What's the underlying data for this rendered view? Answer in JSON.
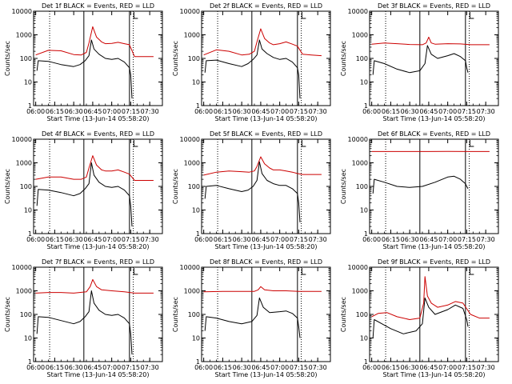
{
  "page": {
    "xtick_labels": [
      "06:00",
      "06:15",
      "06:30",
      "06:45",
      "07:00",
      "07:15",
      "07:30"
    ],
    "ytick_labels": [
      "1",
      "10",
      "100",
      "1000",
      "10000"
    ],
    "colors": {
      "events": "#000000",
      "lld": "#cc0000",
      "marker": "#000000",
      "background": "#ffffff"
    }
  },
  "chart_data": [
    {
      "type": "line",
      "title": "Det 1f BLACK = Events, RED = LLD",
      "xlabel": "Start Time (13-Jun-14 05:58:20)",
      "ylabel": "Counts/sec",
      "xlim": [
        "05:58:20",
        "07:40:00"
      ],
      "ylim": [
        1,
        10000
      ],
      "yscale": "log",
      "solid_markers": [
        "06:38:00",
        "07:14:00"
      ],
      "dotted_markers": [
        "06:11:00",
        "07:17:00"
      ],
      "flag_marker": "07:17:30",
      "series": [
        {
          "color": "#cc0000",
          "x": [
            "06:00",
            "06:10",
            "06:20",
            "06:30",
            "06:36",
            "06:40",
            "06:42",
            "06:45",
            "06:48",
            "06:52",
            "06:55",
            "07:00",
            "07:05",
            "07:10",
            "07:14",
            "07:18",
            "07:25",
            "07:33"
          ],
          "y": [
            140,
            220,
            210,
            145,
            140,
            180,
            450,
            2200,
            800,
            500,
            420,
            430,
            480,
            420,
            380,
            120,
            120,
            120
          ]
        },
        {
          "color": "#000000",
          "x": [
            "06:01",
            "06:02",
            "06:10",
            "06:20",
            "06:30",
            "06:35",
            "06:39",
            "06:42",
            "06:44",
            "06:46",
            "06:50",
            "06:55",
            "07:00",
            "07:05",
            "07:10",
            "07:14",
            "07:15",
            "07:16"
          ],
          "y": [
            30,
            80,
            75,
            55,
            45,
            55,
            80,
            130,
            600,
            250,
            150,
            100,
            90,
            100,
            70,
            40,
            20,
            2
          ]
        }
      ]
    },
    {
      "type": "line",
      "title": "Det 2f BLACK = Events, RED = LLD",
      "xlabel": "Start Time (13-Jun-14 05:58:20)",
      "ylabel": "Counts/sec",
      "xlim": [
        "05:58:20",
        "07:40:00"
      ],
      "ylim": [
        1,
        10000
      ],
      "yscale": "log",
      "solid_markers": [
        "06:38:00",
        "07:14:00"
      ],
      "dotted_markers": [
        "06:11:00",
        "07:17:00"
      ],
      "flag_marker": "07:17:30",
      "series": [
        {
          "color": "#cc0000",
          "x": [
            "06:00",
            "06:10",
            "06:20",
            "06:30",
            "06:36",
            "06:40",
            "06:42",
            "06:45",
            "06:48",
            "06:52",
            "06:55",
            "07:00",
            "07:05",
            "07:10",
            "07:14",
            "07:18",
            "07:25",
            "07:33"
          ],
          "y": [
            140,
            230,
            200,
            140,
            150,
            200,
            500,
            1800,
            700,
            450,
            380,
            420,
            500,
            400,
            330,
            150,
            140,
            130
          ]
        },
        {
          "color": "#000000",
          "x": [
            "06:01",
            "06:02",
            "06:10",
            "06:20",
            "06:30",
            "06:35",
            "06:39",
            "06:42",
            "06:44",
            "06:46",
            "06:50",
            "06:55",
            "07:00",
            "07:05",
            "07:10",
            "07:14",
            "07:15",
            "07:16"
          ],
          "y": [
            25,
            80,
            85,
            60,
            45,
            60,
            90,
            140,
            600,
            250,
            160,
            110,
            90,
            100,
            70,
            40,
            20,
            2
          ]
        }
      ]
    },
    {
      "type": "line",
      "title": "Det 3f BLACK = Events, RED = LLD",
      "xlabel": "Start Time (13-Jun-14 05:58:20)",
      "ylabel": "Counts/sec",
      "xlim": [
        "05:58:20",
        "07:40:00"
      ],
      "ylim": [
        1,
        10000
      ],
      "yscale": "log",
      "solid_markers": [
        "06:38:00",
        "07:14:00"
      ],
      "dotted_markers": [
        "06:11:00",
        "07:17:00"
      ],
      "flag_marker": "07:17:30",
      "series": [
        {
          "color": "#cc0000",
          "x": [
            "06:00",
            "06:10",
            "06:20",
            "06:30",
            "06:40",
            "06:43",
            "06:45",
            "06:47",
            "06:50",
            "07:00",
            "07:10",
            "07:18",
            "07:25",
            "07:33"
          ],
          "y": [
            400,
            450,
            420,
            390,
            380,
            450,
            800,
            450,
            400,
            420,
            410,
            380,
            380,
            380
          ]
        },
        {
          "color": "#000000",
          "x": [
            "06:01",
            "06:02",
            "06:10",
            "06:20",
            "06:30",
            "06:38",
            "06:42",
            "06:44",
            "06:47",
            "06:52",
            "07:00",
            "07:05",
            "07:10",
            "07:14",
            "07:15",
            "07:16"
          ],
          "y": [
            20,
            80,
            60,
            35,
            25,
            30,
            60,
            350,
            150,
            100,
            130,
            160,
            120,
            80,
            40,
            25
          ]
        }
      ]
    },
    {
      "type": "line",
      "title": "Det 4f BLACK = Events, RED = LLD",
      "xlabel": "Start Time (13-Jun-14 05:58:20)",
      "ylabel": "Counts/sec",
      "xlim": [
        "05:58:20",
        "07:40:00"
      ],
      "ylim": [
        1,
        10000
      ],
      "yscale": "log",
      "solid_markers": [
        "06:38:00",
        "07:14:00"
      ],
      "dotted_markers": [
        "06:11:00",
        "07:17:00"
      ],
      "flag_marker": "07:17:30",
      "series": [
        {
          "color": "#cc0000",
          "x": [
            "06:00",
            "06:10",
            "06:20",
            "06:30",
            "06:36",
            "06:40",
            "06:42",
            "06:45",
            "06:48",
            "06:52",
            "06:55",
            "07:00",
            "07:05",
            "07:10",
            "07:14",
            "07:18",
            "07:25",
            "07:33"
          ],
          "y": [
            200,
            250,
            250,
            200,
            200,
            250,
            600,
            2000,
            800,
            500,
            450,
            450,
            500,
            400,
            330,
            180,
            180,
            180
          ]
        },
        {
          "color": "#000000",
          "x": [
            "06:01",
            "06:02",
            "06:10",
            "06:20",
            "06:30",
            "06:35",
            "06:39",
            "06:42",
            "06:44",
            "06:46",
            "06:50",
            "06:55",
            "07:00",
            "07:05",
            "07:10",
            "07:14",
            "07:15",
            "07:16"
          ],
          "y": [
            15,
            75,
            70,
            55,
            40,
            50,
            80,
            130,
            1000,
            300,
            150,
            100,
            90,
            100,
            70,
            40,
            15,
            2
          ]
        }
      ]
    },
    {
      "type": "line",
      "title": "Det 5f BLACK = Events, RED = LLD",
      "xlabel": "Start Time (13-Jun-14 05:58:20)",
      "ylabel": "Counts/sec",
      "xlim": [
        "05:58:20",
        "07:40:00"
      ],
      "ylim": [
        1,
        10000
      ],
      "yscale": "log",
      "solid_markers": [
        "06:38:00",
        "07:14:00"
      ],
      "dotted_markers": [
        "06:11:00",
        "07:17:00"
      ],
      "flag_marker": "07:17:30",
      "series": [
        {
          "color": "#cc0000",
          "x": [
            "06:00",
            "06:10",
            "06:20",
            "06:30",
            "06:36",
            "06:40",
            "06:42",
            "06:45",
            "06:48",
            "06:52",
            "06:55",
            "07:00",
            "07:05",
            "07:10",
            "07:14",
            "07:18",
            "07:25",
            "07:33"
          ],
          "y": [
            300,
            400,
            450,
            420,
            400,
            450,
            700,
            1800,
            900,
            600,
            500,
            500,
            450,
            400,
            350,
            320,
            320,
            320
          ]
        },
        {
          "color": "#000000",
          "x": [
            "06:01",
            "06:02",
            "06:10",
            "06:20",
            "06:30",
            "06:35",
            "06:39",
            "06:42",
            "06:44",
            "06:46",
            "06:50",
            "06:55",
            "07:00",
            "07:05",
            "07:10",
            "07:14",
            "07:15",
            "07:16"
          ],
          "y": [
            30,
            100,
            110,
            80,
            60,
            70,
            100,
            180,
            1100,
            350,
            180,
            130,
            110,
            110,
            80,
            50,
            20,
            3
          ]
        }
      ]
    },
    {
      "type": "line",
      "title": "Det 6f BLACK = Events, RED = LLD",
      "xlabel": "Start Time (13-Jun-14 05:58:20)",
      "ylabel": "Counts/sec",
      "xlim": [
        "05:58:20",
        "07:40:00"
      ],
      "ylim": [
        1,
        10000
      ],
      "yscale": "log",
      "solid_markers": [
        "06:38:00",
        "07:14:00"
      ],
      "dotted_markers": [
        "06:11:00",
        "07:17:00"
      ],
      "flag_marker": "07:17:30",
      "series": [
        {
          "color": "#cc0000",
          "x": [
            "06:00",
            "06:15",
            "06:30",
            "06:45",
            "07:00",
            "07:15",
            "07:33"
          ],
          "y": [
            3000,
            3000,
            3000,
            3000,
            3050,
            3000,
            3000
          ]
        },
        {
          "color": "#000000",
          "x": [
            "06:01",
            "06:02",
            "06:10",
            "06:20",
            "06:30",
            "06:40",
            "06:50",
            "07:00",
            "07:05",
            "07:10",
            "07:14",
            "07:15",
            "07:16"
          ],
          "y": [
            50,
            200,
            150,
            100,
            90,
            100,
            150,
            250,
            270,
            200,
            130,
            100,
            80
          ]
        }
      ]
    },
    {
      "type": "line",
      "title": "Det 7f BLACK = Events, RED = LLD",
      "xlabel": "Start Time (13-Jun-14 05:58:20)",
      "ylabel": "Counts/sec",
      "xlim": [
        "05:58:20",
        "07:40:00"
      ],
      "ylim": [
        1,
        10000
      ],
      "yscale": "log",
      "solid_markers": [
        "06:38:00",
        "07:14:00"
      ],
      "dotted_markers": [
        "06:11:00",
        "07:17:00"
      ],
      "flag_marker": "07:17:30",
      "series": [
        {
          "color": "#cc0000",
          "x": [
            "06:00",
            "06:10",
            "06:20",
            "06:30",
            "06:40",
            "06:43",
            "06:45",
            "06:48",
            "06:52",
            "07:00",
            "07:10",
            "07:18",
            "07:25",
            "07:33"
          ],
          "y": [
            800,
            850,
            850,
            800,
            900,
            1500,
            3000,
            1500,
            1100,
            1000,
            900,
            800,
            800,
            800
          ]
        },
        {
          "color": "#000000",
          "x": [
            "06:01",
            "06:02",
            "06:10",
            "06:20",
            "06:30",
            "06:35",
            "06:39",
            "06:42",
            "06:44",
            "06:46",
            "06:50",
            "06:55",
            "07:00",
            "07:05",
            "07:10",
            "07:14",
            "07:15",
            "07:16"
          ],
          "y": [
            15,
            80,
            75,
            55,
            40,
            50,
            80,
            130,
            1000,
            300,
            150,
            100,
            90,
            100,
            70,
            40,
            15,
            2
          ]
        }
      ]
    },
    {
      "type": "line",
      "title": "Det 8f BLACK = Events, RED = LLD",
      "xlabel": "Start Time (13-Jun-14 05:58:20)",
      "ylabel": "Counts/sec",
      "xlim": [
        "05:58:20",
        "07:40:00"
      ],
      "ylim": [
        1,
        10000
      ],
      "yscale": "log",
      "solid_markers": [
        "06:38:00",
        "07:14:00"
      ],
      "dotted_markers": [
        "06:11:00",
        "07:17:00"
      ],
      "flag_marker": "07:17:30",
      "series": [
        {
          "color": "#cc0000",
          "x": [
            "06:00",
            "06:15",
            "06:30",
            "06:40",
            "06:43",
            "06:45",
            "06:48",
            "06:55",
            "07:05",
            "07:15",
            "07:25",
            "07:33"
          ],
          "y": [
            900,
            950,
            950,
            950,
            1100,
            1500,
            1100,
            1000,
            1000,
            950,
            950,
            950
          ]
        },
        {
          "color": "#000000",
          "x": [
            "06:01",
            "06:02",
            "06:10",
            "06:20",
            "06:30",
            "06:38",
            "06:42",
            "06:44",
            "06:47",
            "06:52",
            "07:00",
            "07:05",
            "07:10",
            "07:14",
            "07:15",
            "07:16"
          ],
          "y": [
            20,
            80,
            70,
            50,
            40,
            50,
            90,
            500,
            200,
            120,
            130,
            140,
            110,
            70,
            30,
            10
          ]
        }
      ]
    },
    {
      "type": "line",
      "title": "Det 9f BLACK = Events, RED = LLD",
      "xlabel": "Start Time (13-Jun-14 05:58:20)",
      "ylabel": "Counts/sec",
      "xlim": [
        "05:58:20",
        "07:40:00"
      ],
      "ylim": [
        1,
        10000
      ],
      "yscale": "log",
      "solid_markers": [
        "06:38:00",
        "07:14:00"
      ],
      "dotted_markers": [
        "06:11:00",
        "07:17:00"
      ],
      "flag_marker": "07:17:30",
      "series": [
        {
          "color": "#cc0000",
          "x": [
            "06:00",
            "06:05",
            "06:12",
            "06:20",
            "06:30",
            "06:38",
            "06:41",
            "06:42",
            "06:44",
            "06:47",
            "06:52",
            "07:00",
            "07:06",
            "07:12",
            "07:18",
            "07:25",
            "07:33"
          ],
          "y": [
            80,
            110,
            120,
            80,
            60,
            70,
            300,
            4000,
            600,
            300,
            200,
            250,
            350,
            300,
            100,
            70,
            70
          ]
        },
        {
          "color": "#000000",
          "x": [
            "06:01",
            "06:02",
            "06:08",
            "06:15",
            "06:25",
            "06:35",
            "06:40",
            "06:42",
            "06:45",
            "06:50",
            "07:00",
            "07:06",
            "07:12",
            "07:15",
            "07:16"
          ],
          "y": [
            10,
            60,
            40,
            25,
            15,
            20,
            40,
            500,
            200,
            100,
            160,
            250,
            180,
            60,
            30
          ]
        }
      ]
    }
  ]
}
